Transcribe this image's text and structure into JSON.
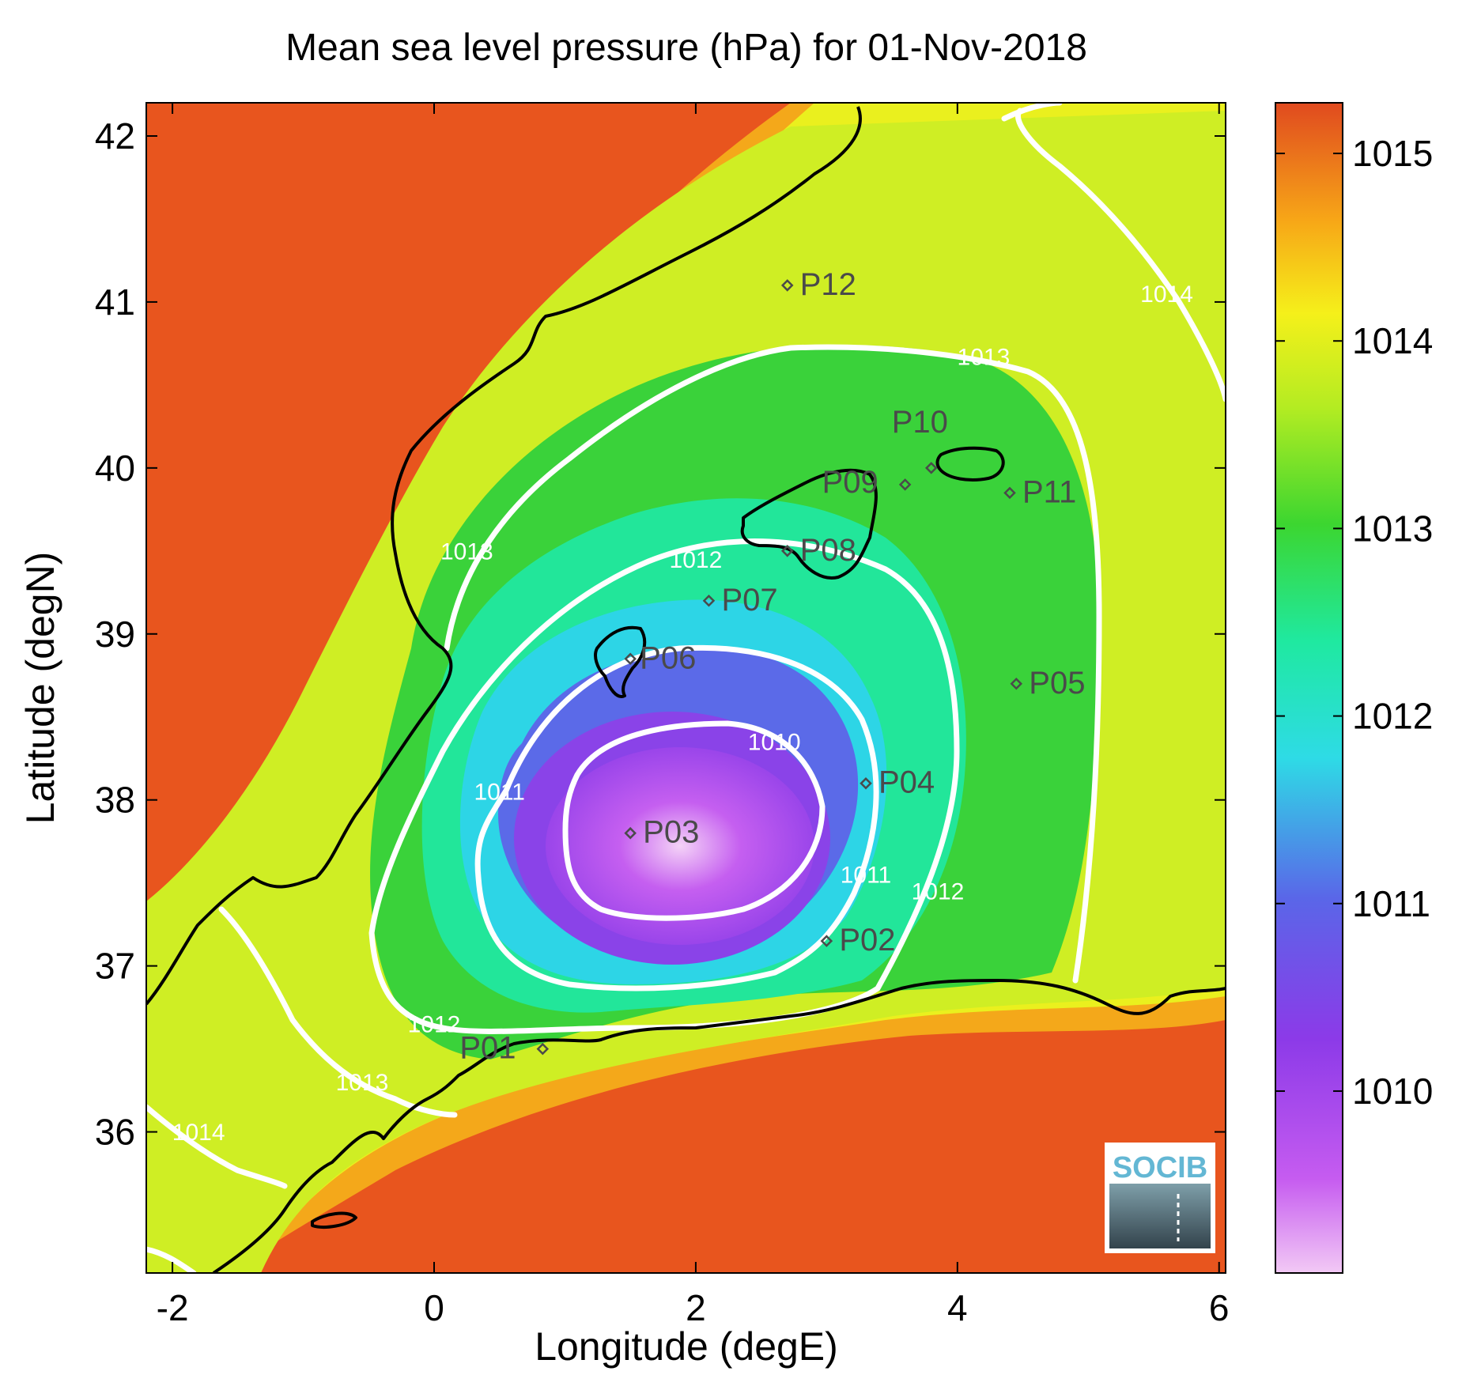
{
  "title": "Mean sea level pressure (hPa) for 01-Nov-2018",
  "axes": {
    "xlabel": "Longitude (degE)",
    "ylabel": "Latitude (degN)",
    "xlim": [
      -2.2,
      6.05
    ],
    "ylim": [
      35.15,
      42.2
    ],
    "xticks": [
      {
        "value": -2,
        "label": "-2"
      },
      {
        "value": 0,
        "label": "0"
      },
      {
        "value": 2,
        "label": "2"
      },
      {
        "value": 4,
        "label": "4"
      },
      {
        "value": 6,
        "label": "6"
      }
    ],
    "yticks": [
      {
        "value": 36,
        "label": "36"
      },
      {
        "value": 37,
        "label": "37"
      },
      {
        "value": 38,
        "label": "38"
      },
      {
        "value": 39,
        "label": "39"
      },
      {
        "value": 40,
        "label": "40"
      },
      {
        "value": 41,
        "label": "41"
      },
      {
        "value": 42,
        "label": "42"
      }
    ]
  },
  "colorbar": {
    "min": 1009.03,
    "max": 1015.27,
    "ticks": [
      {
        "value": 1010,
        "label": "1010"
      },
      {
        "value": 1011,
        "label": "1011"
      },
      {
        "value": 1012,
        "label": "1012"
      },
      {
        "value": 1013,
        "label": "1013"
      },
      {
        "value": 1014,
        "label": "1014"
      },
      {
        "value": 1015,
        "label": "1015"
      }
    ],
    "colormap": "jet-like (magenta-blue-cyan-green-yellow-orange)"
  },
  "stations": [
    {
      "label": "P01",
      "lon": 0.83,
      "lat": 36.5
    },
    {
      "label": "P02",
      "lon": 3.0,
      "lat": 37.15
    },
    {
      "label": "P03",
      "lon": 1.5,
      "lat": 37.8
    },
    {
      "label": "P04",
      "lon": 3.3,
      "lat": 38.1
    },
    {
      "label": "P05",
      "lon": 4.45,
      "lat": 38.7
    },
    {
      "label": "P06",
      "lon": 1.5,
      "lat": 38.85
    },
    {
      "label": "P07",
      "lon": 2.1,
      "lat": 39.2
    },
    {
      "label": "P08",
      "lon": 2.7,
      "lat": 39.5
    },
    {
      "label": "P09",
      "lon": 3.6,
      "lat": 39.9
    },
    {
      "label": "P10",
      "lon": 3.8,
      "lat": 40.0
    },
    {
      "label": "P11",
      "lon": 4.4,
      "lat": 39.85
    },
    {
      "label": "P12",
      "lon": 2.7,
      "lat": 41.1
    }
  ],
  "contour_labels": [
    {
      "text": "1010",
      "lon": 2.6,
      "lat": 38.3
    },
    {
      "text": "1011",
      "lon": 0.5,
      "lat": 38.0
    },
    {
      "text": "1011",
      "lon": 3.3,
      "lat": 37.5
    },
    {
      "text": "1012",
      "lon": 2.0,
      "lat": 39.4
    },
    {
      "text": "1012",
      "lon": 3.85,
      "lat": 37.4
    },
    {
      "text": "1012",
      "lon": 0.0,
      "lat": 36.6
    },
    {
      "text": "1013",
      "lon": 0.25,
      "lat": 39.45
    },
    {
      "text": "1013",
      "lon": 4.2,
      "lat": 40.62
    },
    {
      "text": "1013",
      "lon": -0.55,
      "lat": 36.25
    },
    {
      "text": "1014",
      "lon": 5.6,
      "lat": 41.0
    },
    {
      "text": "1014",
      "lon": -1.8,
      "lat": 35.95
    }
  ],
  "logo": {
    "text": "SOCIB"
  }
}
